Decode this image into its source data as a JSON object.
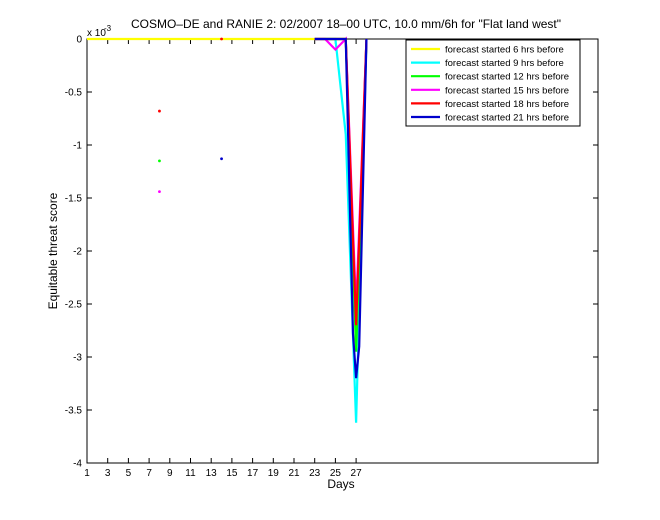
{
  "chart_data": {
    "type": "line",
    "title": "COSMO–DE and RANIE 2: 02/2007 18–00 UTC, 10.0 mm/6h for \"Flat land west\"",
    "xlabel": "Days",
    "ylabel": "Equitable threat score",
    "exponent_label": "x 10",
    "exponent_power": "-3",
    "xlim": [
      1,
      50
    ],
    "ylim": [
      -4,
      0
    ],
    "xticks": [
      1,
      3,
      5,
      7,
      9,
      11,
      13,
      15,
      17,
      19,
      21,
      23,
      25,
      27
    ],
    "yticks": [
      0,
      -0.5,
      -1,
      -1.5,
      -2,
      -2.5,
      -3,
      -3.5,
      -4
    ],
    "ytick_labels": [
      "0",
      "-0.5",
      "-1",
      "-1.5",
      "-2",
      "-2.5",
      "-3",
      "-3.5",
      "-4"
    ],
    "legend_position": "top-right",
    "series": [
      {
        "name": "forecast started 6 hrs before",
        "color": "#ffff00",
        "points": [
          [
            1,
            0
          ],
          [
            2,
            0
          ],
          [
            3,
            0
          ],
          [
            4,
            0
          ],
          [
            5,
            0
          ],
          [
            6,
            0
          ],
          [
            7,
            0
          ],
          [
            8,
            0
          ],
          [
            9,
            0
          ],
          [
            10,
            0
          ],
          [
            11,
            0
          ],
          [
            12,
            0
          ],
          [
            13,
            0
          ],
          [
            14,
            0
          ],
          [
            15,
            0
          ],
          [
            16,
            0
          ],
          [
            17,
            0
          ],
          [
            18,
            0
          ],
          [
            19,
            0
          ],
          [
            20,
            0
          ],
          [
            21,
            0
          ],
          [
            22,
            0
          ],
          [
            23,
            0
          ],
          [
            24,
            0
          ],
          [
            25,
            0
          ],
          [
            26,
            0
          ],
          [
            27,
            -2.9
          ],
          [
            28,
            0
          ]
        ]
      },
      {
        "name": "forecast started 9 hrs before",
        "color": "#00ffff",
        "points": [
          [
            23,
            0
          ],
          [
            24,
            0
          ],
          [
            25,
            0
          ],
          [
            26,
            -0.9
          ],
          [
            27,
            -3.62
          ],
          [
            28,
            0
          ]
        ]
      },
      {
        "name": "forecast started 12 hrs before",
        "color": "#00ff00",
        "points": [
          [
            8,
            -1.15
          ],
          [
            23,
            0
          ],
          [
            24,
            0
          ],
          [
            25,
            0
          ],
          [
            26,
            0
          ],
          [
            27,
            -2.95
          ],
          [
            28,
            0
          ]
        ]
      },
      {
        "name": "forecast started 15 hrs before",
        "color": "#ff00ff",
        "points": [
          [
            8,
            -1.44
          ],
          [
            23,
            0
          ],
          [
            24,
            0
          ],
          [
            25,
            -0.1
          ],
          [
            26,
            0
          ],
          [
            27,
            -2.55
          ],
          [
            28,
            0
          ]
        ]
      },
      {
        "name": "forecast started 18 hrs before",
        "color": "#ff0000",
        "points": [
          [
            8,
            -0.68
          ],
          [
            14,
            0
          ],
          [
            23,
            0
          ],
          [
            24,
            0
          ],
          [
            25,
            0
          ],
          [
            26,
            0
          ],
          [
            27,
            -2.7
          ],
          [
            28,
            0
          ]
        ]
      },
      {
        "name": "forecast started 21 hrs before",
        "color": "#0000cc",
        "points": [
          [
            14,
            -1.13
          ],
          [
            23,
            0
          ],
          [
            24,
            0
          ],
          [
            25,
            0
          ],
          [
            26,
            0
          ],
          [
            26.7,
            -2.78
          ],
          [
            27,
            -3.2
          ],
          [
            27.3,
            -2.9
          ],
          [
            28,
            0
          ]
        ]
      }
    ]
  }
}
